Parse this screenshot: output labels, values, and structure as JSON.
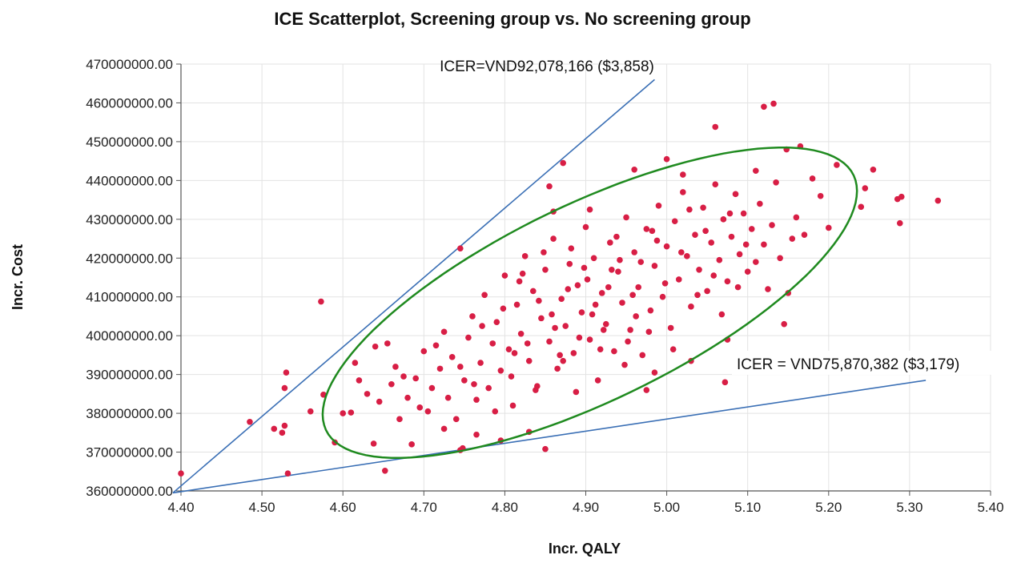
{
  "chart_data": {
    "type": "scatter",
    "title": "ICE Scatterplot, Screening group vs. No screening group",
    "xlabel": "Incr. QALY",
    "ylabel": "Incr. Cost",
    "xlim": [
      4.4,
      5.4
    ],
    "ylim": [
      360000000,
      470000000
    ],
    "x_ticks": [
      "4.40",
      "4.50",
      "4.60",
      "4.70",
      "4.80",
      "4.90",
      "5.00",
      "5.10",
      "5.20",
      "5.30",
      "5.40"
    ],
    "y_ticks": [
      "360000000.00",
      "370000000.00",
      "380000000.00",
      "390000000.00",
      "400000000.00",
      "410000000.00",
      "420000000.00",
      "430000000.00",
      "440000000.00",
      "450000000.00",
      "460000000.00",
      "470000000.00"
    ],
    "grid": true,
    "point_color": "#d81e45",
    "ellipse_color": "#1f8a1f",
    "line_color": "#3a6fb5",
    "ellipse": {
      "center_x": 4.905,
      "center_y": 408500000,
      "semi_x": 0.33,
      "semi_y": 40000000,
      "corr": 0.72
    },
    "icer_lines": [
      {
        "label": "ICER=VND92,078,166 ($3,858)",
        "x": [
          4.39,
          4.985
        ],
        "y": [
          359500000,
          466000000
        ]
      },
      {
        "label": "ICER = VND75,870,382 ($3,179)",
        "x": [
          4.39,
          5.32
        ],
        "y": [
          359500000,
          388500000
        ]
      }
    ],
    "points": [
      [
        4.4,
        364500000
      ],
      [
        4.485,
        377800000
      ],
      [
        4.515,
        376000000
      ],
      [
        4.525,
        375000000
      ],
      [
        4.528,
        376800000
      ],
      [
        4.528,
        386500000
      ],
      [
        4.53,
        390500000
      ],
      [
        4.532,
        364500000
      ],
      [
        4.56,
        380500000
      ],
      [
        4.573,
        408800000
      ],
      [
        4.576,
        384800000
      ],
      [
        4.59,
        372500000
      ],
      [
        4.6,
        380000000
      ],
      [
        4.61,
        380200000
      ],
      [
        4.638,
        372200000
      ],
      [
        4.652,
        365200000
      ],
      [
        4.655,
        398000000
      ],
      [
        4.725,
        376000000
      ],
      [
        4.745,
        422500000
      ],
      [
        4.745,
        370500000
      ],
      [
        4.748,
        371000000
      ],
      [
        4.765,
        374500000
      ],
      [
        4.795,
        373000000
      ],
      [
        4.83,
        375200000
      ],
      [
        4.85,
        370800000
      ],
      [
        4.855,
        438500000
      ],
      [
        4.86,
        432000000
      ],
      [
        4.872,
        444500000
      ],
      [
        4.905,
        432500000
      ],
      [
        4.96,
        442800000
      ],
      [
        4.975,
        386000000
      ],
      [
        4.985,
        390500000
      ],
      [
        5.0,
        445500000
      ],
      [
        5.02,
        441500000
      ],
      [
        5.03,
        393500000
      ],
      [
        5.06,
        453800000
      ],
      [
        5.072,
        388000000
      ],
      [
        5.075,
        399000000
      ],
      [
        5.11,
        442500000
      ],
      [
        5.12,
        459000000
      ],
      [
        5.132,
        459800000
      ],
      [
        5.145,
        403000000
      ],
      [
        5.148,
        448000000
      ],
      [
        5.165,
        448800000
      ],
      [
        5.15,
        411000000
      ],
      [
        5.155,
        425000000
      ],
      [
        5.19,
        436000000
      ],
      [
        5.2,
        427800000
      ],
      [
        5.21,
        444000000
      ],
      [
        5.24,
        433200000
      ],
      [
        5.245,
        438000000
      ],
      [
        5.255,
        442800000
      ],
      [
        5.285,
        435200000
      ],
      [
        5.29,
        435800000
      ],
      [
        5.288,
        429000000
      ],
      [
        5.335,
        434800000
      ],
      [
        4.615,
        393000000
      ],
      [
        4.62,
        388500000
      ],
      [
        4.63,
        385000000
      ],
      [
        4.64,
        397200000
      ],
      [
        4.645,
        383000000
      ],
      [
        4.66,
        387500000
      ],
      [
        4.665,
        392000000
      ],
      [
        4.67,
        378500000
      ],
      [
        4.68,
        384000000
      ],
      [
        4.685,
        372000000
      ],
      [
        4.69,
        389000000
      ],
      [
        4.7,
        396000000
      ],
      [
        4.705,
        380500000
      ],
      [
        4.71,
        386500000
      ],
      [
        4.72,
        391500000
      ],
      [
        4.725,
        401000000
      ],
      [
        4.73,
        384000000
      ],
      [
        4.735,
        394500000
      ],
      [
        4.74,
        378500000
      ],
      [
        4.75,
        388500000
      ],
      [
        4.755,
        399500000
      ],
      [
        4.76,
        405000000
      ],
      [
        4.765,
        383500000
      ],
      [
        4.77,
        393000000
      ],
      [
        4.775,
        410500000
      ],
      [
        4.78,
        386500000
      ],
      [
        4.785,
        398000000
      ],
      [
        4.79,
        403500000
      ],
      [
        4.795,
        391000000
      ],
      [
        4.8,
        415500000
      ],
      [
        4.805,
        396500000
      ],
      [
        4.81,
        382000000
      ],
      [
        4.815,
        408000000
      ],
      [
        4.82,
        400500000
      ],
      [
        4.825,
        420500000
      ],
      [
        4.83,
        393500000
      ],
      [
        4.835,
        411500000
      ],
      [
        4.84,
        387000000
      ],
      [
        4.845,
        404500000
      ],
      [
        4.85,
        417000000
      ],
      [
        4.855,
        398500000
      ],
      [
        4.86,
        425000000
      ],
      [
        4.865,
        391500000
      ],
      [
        4.87,
        409500000
      ],
      [
        4.875,
        402500000
      ],
      [
        4.88,
        418500000
      ],
      [
        4.885,
        395500000
      ],
      [
        4.89,
        413000000
      ],
      [
        4.895,
        406000000
      ],
      [
        4.9,
        428000000
      ],
      [
        4.905,
        399000000
      ],
      [
        4.91,
        420000000
      ],
      [
        4.915,
        388500000
      ],
      [
        4.92,
        411000000
      ],
      [
        4.925,
        403000000
      ],
      [
        4.93,
        424000000
      ],
      [
        4.935,
        396000000
      ],
      [
        4.94,
        416500000
      ],
      [
        4.945,
        408500000
      ],
      [
        4.95,
        430500000
      ],
      [
        4.955,
        401500000
      ],
      [
        4.96,
        421500000
      ],
      [
        4.965,
        412500000
      ],
      [
        4.97,
        395000000
      ],
      [
        4.975,
        427500000
      ],
      [
        4.98,
        406500000
      ],
      [
        4.985,
        418000000
      ],
      [
        4.99,
        433500000
      ],
      [
        4.995,
        410000000
      ],
      [
        5.0,
        423000000
      ],
      [
        5.005,
        402000000
      ],
      [
        5.01,
        429500000
      ],
      [
        5.015,
        414500000
      ],
      [
        5.02,
        437000000
      ],
      [
        5.025,
        420500000
      ],
      [
        5.03,
        407500000
      ],
      [
        5.035,
        426000000
      ],
      [
        5.04,
        417000000
      ],
      [
        5.045,
        433000000
      ],
      [
        5.05,
        411500000
      ],
      [
        5.055,
        424000000
      ],
      [
        5.06,
        439000000
      ],
      [
        5.065,
        419500000
      ],
      [
        5.07,
        430000000
      ],
      [
        5.075,
        414000000
      ],
      [
        5.08,
        425500000
      ],
      [
        5.085,
        436500000
      ],
      [
        5.09,
        421000000
      ],
      [
        5.095,
        431500000
      ],
      [
        5.1,
        416500000
      ],
      [
        5.105,
        427500000
      ],
      [
        5.11,
        419000000
      ],
      [
        5.115,
        434000000
      ],
      [
        5.12,
        423500000
      ],
      [
        5.125,
        412000000
      ],
      [
        5.13,
        428500000
      ],
      [
        5.135,
        439500000
      ],
      [
        5.14,
        420000000
      ],
      [
        5.16,
        430500000
      ],
      [
        5.17,
        426000000
      ],
      [
        5.18,
        440500000
      ],
      [
        4.675,
        389500000
      ],
      [
        4.695,
        381500000
      ],
      [
        4.715,
        397500000
      ],
      [
        4.745,
        392000000
      ],
      [
        4.762,
        387500000
      ],
      [
        4.772,
        402500000
      ],
      [
        4.788,
        380500000
      ],
      [
        4.798,
        407000000
      ],
      [
        4.808,
        389500000
      ],
      [
        4.818,
        414000000
      ],
      [
        4.828,
        398000000
      ],
      [
        4.838,
        386000000
      ],
      [
        4.848,
        421500000
      ],
      [
        4.858,
        405500000
      ],
      [
        4.868,
        395000000
      ],
      [
        4.878,
        412000000
      ],
      [
        4.888,
        385500000
      ],
      [
        4.898,
        417500000
      ],
      [
        4.908,
        405500000
      ],
      [
        4.918,
        396500000
      ],
      [
        4.928,
        412500000
      ],
      [
        4.938,
        425500000
      ],
      [
        4.948,
        392500000
      ],
      [
        4.958,
        410500000
      ],
      [
        4.968,
        419000000
      ],
      [
        4.978,
        401000000
      ],
      [
        4.988,
        424500000
      ],
      [
        4.998,
        413500000
      ],
      [
        5.008,
        396500000
      ],
      [
        5.018,
        421500000
      ],
      [
        5.028,
        432500000
      ],
      [
        5.038,
        410500000
      ],
      [
        5.048,
        427000000
      ],
      [
        5.058,
        415500000
      ],
      [
        5.068,
        405500000
      ],
      [
        5.078,
        431500000
      ],
      [
        5.088,
        412500000
      ],
      [
        5.098,
        423500000
      ],
      [
        4.812,
        395500000
      ],
      [
        4.822,
        416000000
      ],
      [
        4.842,
        409000000
      ],
      [
        4.862,
        402000000
      ],
      [
        4.882,
        422500000
      ],
      [
        4.902,
        414500000
      ],
      [
        4.922,
        401500000
      ],
      [
        4.942,
        419500000
      ],
      [
        4.962,
        405000000
      ],
      [
        4.982,
        427000000
      ],
      [
        4.872,
        393500000
      ],
      [
        4.892,
        399500000
      ],
      [
        4.912,
        408000000
      ],
      [
        4.932,
        417000000
      ],
      [
        4.952,
        398500000
      ]
    ]
  }
}
